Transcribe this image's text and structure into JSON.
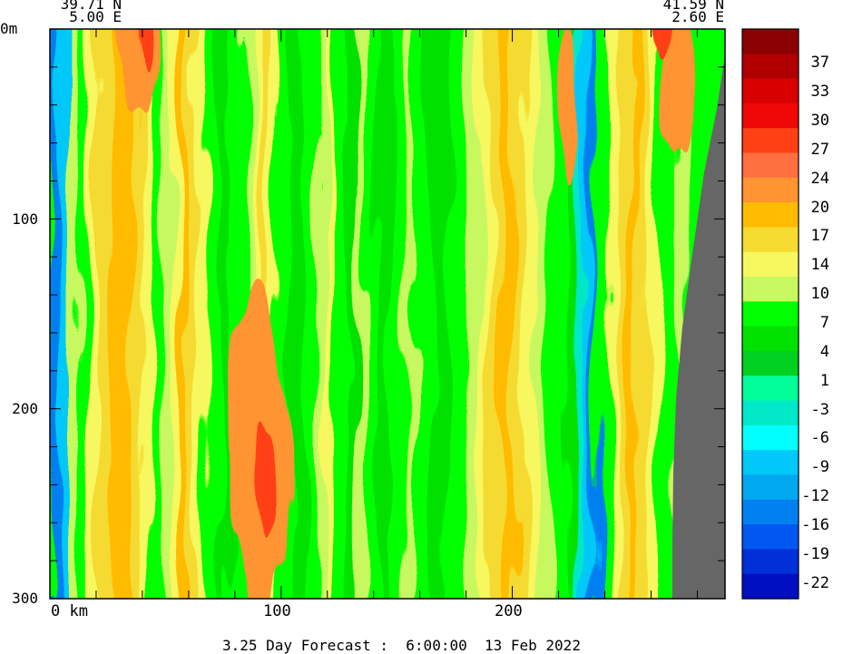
{
  "chart_data": {
    "type": "heatmap",
    "header": {
      "start_lat": "39.71 N",
      "start_lon": "5.00 E",
      "end_lat": "41.59 N",
      "end_lon": "2.60 E"
    },
    "x_axis": {
      "ticks": [
        "0 km",
        "100",
        "200"
      ],
      "tick_values": [
        0,
        100,
        200
      ],
      "range": [
        0,
        292
      ]
    },
    "y_axis": {
      "ticks": [
        "0m",
        "100",
        "200",
        "300"
      ],
      "tick_values": [
        0,
        100,
        200,
        300
      ],
      "range": [
        0,
        300
      ],
      "inverted": true
    },
    "colorbar": {
      "labels": [
        "37",
        "33",
        "30",
        "27",
        "24",
        "20",
        "17",
        "14",
        "10",
        "7",
        "4",
        "1",
        "-3",
        "-6",
        "-9",
        "-12",
        "-16",
        "-19",
        "-22"
      ],
      "colors": [
        "#8b0000",
        "#b00000",
        "#d80000",
        "#f00808",
        "#ff4015",
        "#ff7040",
        "#ff9430",
        "#ffbb00",
        "#f5da30",
        "#f7f760",
        "#c8f860",
        "#00ff00",
        "#00e100",
        "#00d020",
        "#00ff99",
        "#00e8c8",
        "#00ffff",
        "#00c8f8",
        "#00a8f0",
        "#0080f0",
        "#0058f0",
        "#0030d8",
        "#0010c0"
      ]
    },
    "footer": "3.25 Day Forecast :  6:00:00  13 Feb 2022"
  }
}
